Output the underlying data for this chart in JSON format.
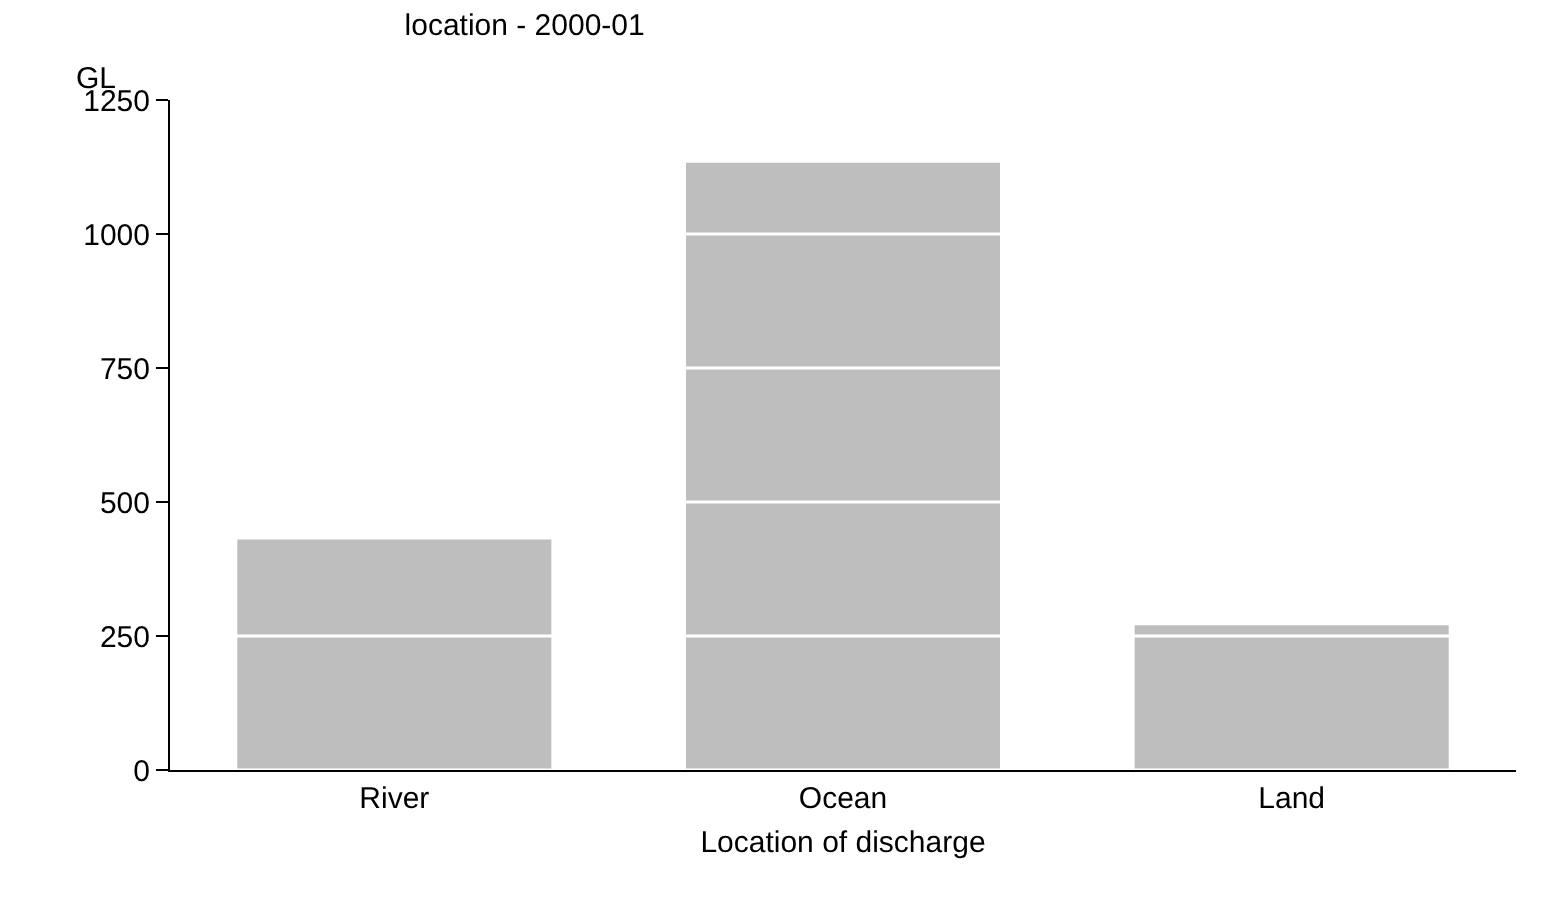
{
  "chart_data": {
    "type": "bar",
    "title": "location - 2000-01",
    "xlabel": "Location of discharge",
    "ylabel": "GL",
    "categories": [
      "River",
      "Ocean",
      "Land"
    ],
    "values": [
      430,
      1133,
      270
    ],
    "color": "#bebebe",
    "ylim": [
      0,
      1250
    ],
    "yticks": [
      0,
      250,
      500,
      750,
      1000,
      1250
    ],
    "grid": "y"
  }
}
